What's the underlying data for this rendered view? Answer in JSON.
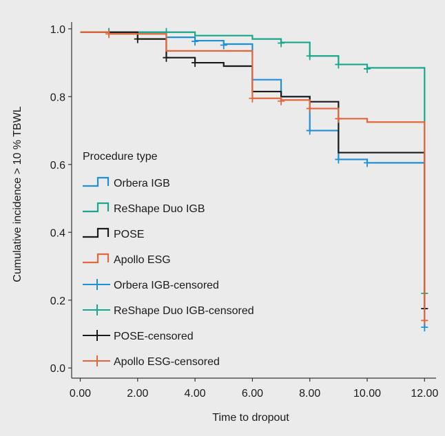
{
  "chart_data": {
    "type": "line",
    "subtype": "kaplan-meier-cumulative-incidence",
    "title": "",
    "xlabel": "Time to dropout",
    "ylabel": "Cumulative incidence > 10 % TBWL",
    "xlim": [
      -0.3,
      12.4
    ],
    "ylim": [
      -0.03,
      1.02
    ],
    "x_ticks": [
      0,
      2,
      4,
      6,
      8,
      10,
      12
    ],
    "x_tick_labels": [
      "0.00",
      "2.00",
      "4.00",
      "6.00",
      "8.00",
      "10.00",
      "12.00"
    ],
    "y_ticks": [
      0.0,
      0.2,
      0.4,
      0.6,
      0.8,
      1.0
    ],
    "y_tick_labels": [
      "0.0",
      "0.2",
      "0.4",
      "0.6",
      "0.8",
      "1.0"
    ],
    "grid": false,
    "legend": {
      "title": "Procedure type",
      "placement": "center-left",
      "step_entries": [
        "Orbera IGB",
        "ReShape Duo IGB",
        "POSE",
        "Apollo ESG"
      ],
      "censored_entries": [
        "Orbera IGB-censored",
        "ReShape Duo IGB-censored",
        "POSE-censored",
        "Apollo ESG-censored"
      ]
    },
    "series": [
      {
        "name": "Orbera IGB",
        "color": "#1f8fd6",
        "steps": [
          [
            0,
            0.99
          ],
          [
            1,
            0.99
          ],
          [
            3,
            0.975
          ],
          [
            4,
            0.965
          ],
          [
            5,
            0.955
          ],
          [
            6,
            0.85
          ],
          [
            7,
            0.8
          ],
          [
            8,
            0.7
          ],
          [
            9,
            0.615
          ],
          [
            10,
            0.605
          ],
          [
            12,
            0.12
          ]
        ],
        "censored": [
          [
            1,
            0.99
          ],
          [
            4,
            0.963
          ],
          [
            5,
            0.952
          ],
          [
            8,
            0.7
          ],
          [
            9,
            0.615
          ],
          [
            10,
            0.605
          ],
          [
            12,
            0.12
          ]
        ]
      },
      {
        "name": "ReShape Duo IGB",
        "color": "#1aa68a",
        "steps": [
          [
            0,
            0.99
          ],
          [
            1,
            0.99
          ],
          [
            3,
            0.99
          ],
          [
            4,
            0.98
          ],
          [
            6,
            0.97
          ],
          [
            7,
            0.96
          ],
          [
            8,
            0.92
          ],
          [
            9,
            0.895
          ],
          [
            10,
            0.885
          ],
          [
            12,
            0.22
          ]
        ],
        "censored": [
          [
            1,
            0.99
          ],
          [
            3,
            0.99
          ],
          [
            7,
            0.958
          ],
          [
            8,
            0.92
          ],
          [
            9,
            0.895
          ],
          [
            10,
            0.882
          ],
          [
            12,
            0.22
          ]
        ]
      },
      {
        "name": "POSE",
        "color": "#1a1a1a",
        "steps": [
          [
            0,
            0.99
          ],
          [
            1,
            0.99
          ],
          [
            2,
            0.97
          ],
          [
            3,
            0.915
          ],
          [
            4,
            0.9
          ],
          [
            5,
            0.89
          ],
          [
            6,
            0.815
          ],
          [
            7,
            0.8
          ],
          [
            8,
            0.785
          ],
          [
            9,
            0.635
          ],
          [
            12,
            0.175
          ]
        ],
        "censored": [
          [
            2,
            0.97
          ],
          [
            3,
            0.915
          ],
          [
            4,
            0.9
          ],
          [
            12,
            0.175
          ]
        ]
      },
      {
        "name": "Apollo ESG",
        "color": "#e2673d",
        "steps": [
          [
            0,
            0.99
          ],
          [
            1,
            0.985
          ],
          [
            3,
            0.935
          ],
          [
            6,
            0.795
          ],
          [
            7,
            0.79
          ],
          [
            8,
            0.765
          ],
          [
            9,
            0.735
          ],
          [
            10,
            0.725
          ],
          [
            12,
            0.14
          ]
        ],
        "censored": [
          [
            1,
            0.985
          ],
          [
            6,
            0.795
          ],
          [
            7,
            0.787
          ],
          [
            8,
            0.765
          ],
          [
            9,
            0.735
          ],
          [
            12,
            0.14
          ]
        ]
      }
    ]
  }
}
